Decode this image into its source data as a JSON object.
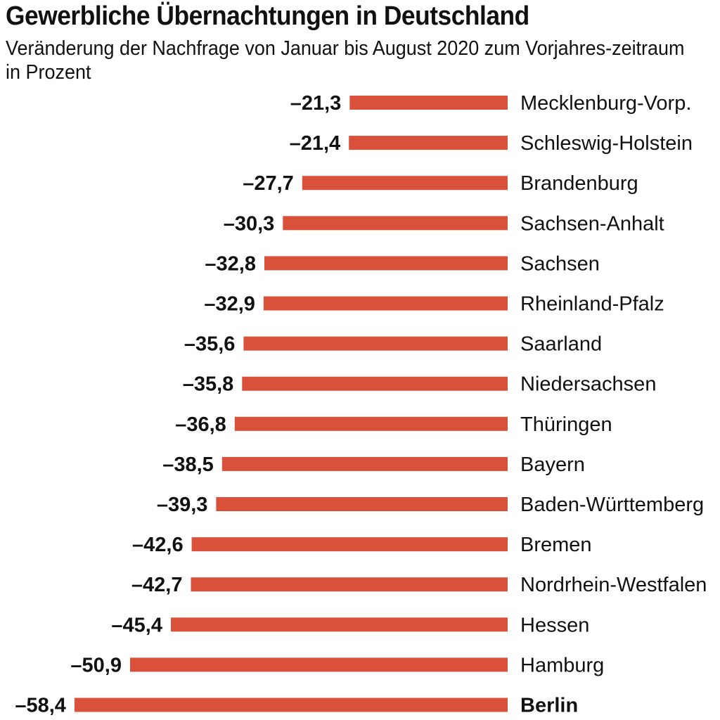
{
  "header": {
    "title": "Gewerbliche Übernachtungen in Deutschland",
    "subtitle": "Veränderung der Nachfrage von Januar bis August 2020 zum Vorjahres-zeitraum in Prozent"
  },
  "chart_data": {
    "type": "bar",
    "orientation": "horizontal",
    "title": "Gewerbliche Übernachtungen in Deutschland",
    "subtitle": "Veränderung der Nachfrage von Januar bis August 2020 zum Vorjahres-zeitraum in Prozent",
    "categories": [
      "Mecklenburg-Vorp.",
      "Schleswig-Holstein",
      "Brandenburg",
      "Sachsen-Anhalt",
      "Sachsen",
      "Rheinland-Pfalz",
      "Saarland",
      "Niedersachsen",
      "Thüringen",
      "Bayern",
      "Baden-Württemberg",
      "Bremen",
      "Nordrhein-Westfalen",
      "Hessen",
      "Hamburg",
      "Berlin"
    ],
    "values": [
      -21.3,
      -21.4,
      -27.7,
      -30.3,
      -32.8,
      -32.9,
      -35.6,
      -35.8,
      -36.8,
      -38.5,
      -39.3,
      -42.6,
      -42.7,
      -45.4,
      -50.9,
      -58.4
    ],
    "value_labels": [
      "–21,3",
      "–21,4",
      "–27,7",
      "–30,3",
      "–32,8",
      "–32,9",
      "–35,6",
      "–35,8",
      "–36,8",
      "–38,5",
      "–39,3",
      "–42,6",
      "–42,7",
      "–45,4",
      "–50,9",
      "–58,4"
    ],
    "highlight": "Berlin",
    "bar_color": "#d9503b",
    "grid": false,
    "legend": "none"
  }
}
